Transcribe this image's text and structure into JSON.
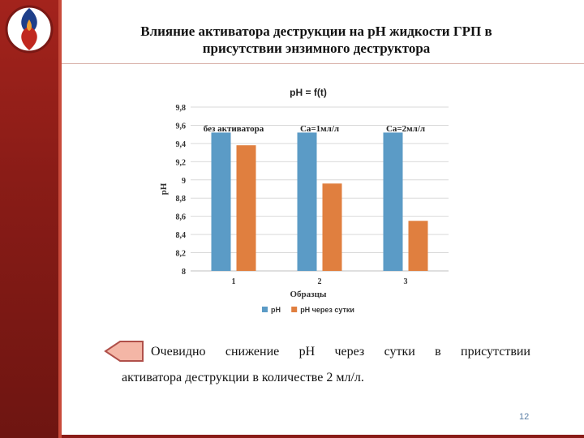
{
  "slide": {
    "title_line1": "Влияние активатора деструкции на рН жидкости ГРП в",
    "title_line2": "присутствии энзимного деструктора",
    "body_words": [
      "Очевидно",
      "снижение",
      "рН",
      "через",
      "сутки",
      "в",
      "присутствии"
    ],
    "body_line2": "активатора деструкции в количестве  2 мл/л.",
    "page_number": "12"
  },
  "colors": {
    "sidebar": "#8a1c17",
    "series_blue": "#5b9bc6",
    "series_orange": "#e07f3f",
    "bullet_fill": "#f4b6a6"
  },
  "chart_data": {
    "type": "bar",
    "title": "pH = f(t)",
    "xlabel": "Образцы",
    "ylabel": "pH",
    "categories": [
      "1",
      "2",
      "3"
    ],
    "category_annotations": [
      "без активатора",
      "Са=1мл/л",
      "Са=2мл/л"
    ],
    "ylim": [
      8,
      9.8
    ],
    "yticks": [
      "8",
      "8,2",
      "8,4",
      "8,6",
      "8,8",
      "9",
      "9,2",
      "9,4",
      "9,6",
      "9,8"
    ],
    "grid": true,
    "legend_placement": "bottom",
    "series": [
      {
        "name": "pH",
        "color": "#5b9bc6",
        "values": [
          9.52,
          9.52,
          9.52
        ]
      },
      {
        "name": "pH через сутки",
        "color": "#e07f3f",
        "values": [
          9.38,
          8.96,
          8.55
        ]
      }
    ]
  }
}
